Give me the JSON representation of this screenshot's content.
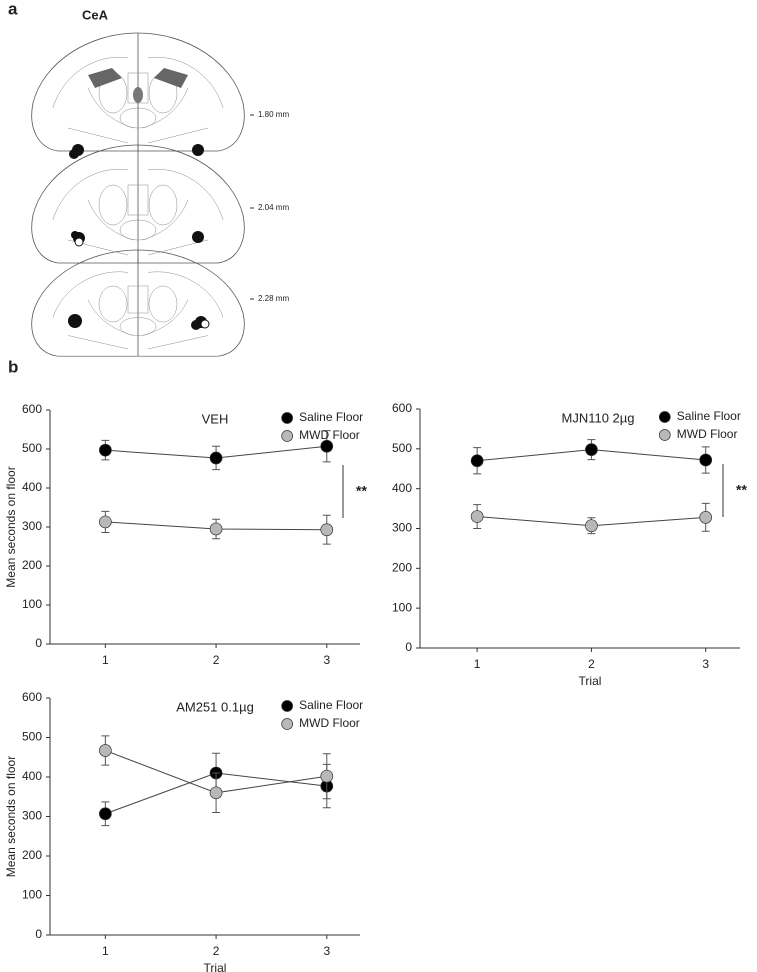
{
  "figure": {
    "panel_a_label": "a",
    "panel_a_title": "CeA",
    "levels": [
      "1.80 mm",
      "2.04 mm",
      "2.28 mm"
    ],
    "panel_b_label": "b"
  },
  "chart_data": [
    {
      "type": "line",
      "title": "VEH",
      "x": [
        1,
        2,
        3
      ],
      "xlim": [
        0.5,
        3.3
      ],
      "xticks": [
        1,
        2,
        3
      ],
      "ylim": [
        0,
        600
      ],
      "yticks": [
        0,
        100,
        200,
        300,
        400,
        500,
        600
      ],
      "y_label": "Mean seconds on floor",
      "legend": "upper right",
      "series": [
        {
          "name": "Saline Floor",
          "color": "#000000",
          "values": [
            497,
            477,
            507
          ],
          "errors": [
            25,
            30,
            40
          ]
        },
        {
          "name": "MWD Floor",
          "color": "#b8b8b8",
          "values": [
            313,
            295,
            293
          ],
          "errors": [
            27,
            25,
            37
          ]
        }
      ],
      "annotation": "**"
    },
    {
      "type": "line",
      "title": "MJN110 2µg",
      "x": [
        1,
        2,
        3
      ],
      "xlim": [
        0.5,
        3.3
      ],
      "xticks": [
        1,
        2,
        3
      ],
      "ylim": [
        0,
        600
      ],
      "yticks": [
        0,
        100,
        200,
        300,
        400,
        500,
        600
      ],
      "x_label": "Trial",
      "legend": "upper right",
      "series": [
        {
          "name": "Saline Floor",
          "color": "#000000",
          "values": [
            470,
            498,
            472
          ],
          "errors": [
            33,
            25,
            33
          ]
        },
        {
          "name": "MWD Floor",
          "color": "#b8b8b8",
          "values": [
            330,
            307,
            328
          ],
          "errors": [
            30,
            20,
            35
          ]
        }
      ],
      "annotation": "**"
    },
    {
      "type": "line",
      "title": "AM251 0.1µg",
      "x": [
        1,
        2,
        3
      ],
      "xlim": [
        0.5,
        3.3
      ],
      "xticks": [
        1,
        2,
        3
      ],
      "ylim": [
        0,
        600
      ],
      "yticks": [
        0,
        100,
        200,
        300,
        400,
        500,
        600
      ],
      "y_label": "Mean seconds on floor",
      "x_label": "Trial",
      "legend": "upper right",
      "series": [
        {
          "name": "Saline Floor",
          "color": "#000000",
          "values": [
            307,
            410,
            377
          ],
          "errors": [
            30,
            50,
            55
          ]
        },
        {
          "name": "MWD Floor",
          "color": "#b8b8b8",
          "values": [
            467,
            360,
            402
          ],
          "errors": [
            37,
            50,
            57
          ]
        }
      ]
    }
  ]
}
